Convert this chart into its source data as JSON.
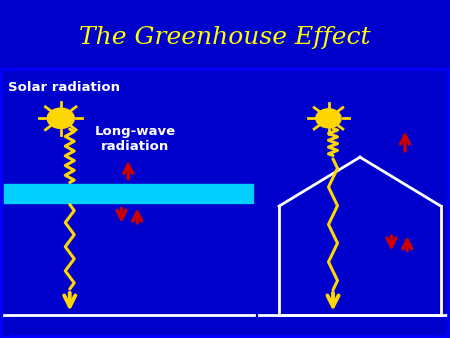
{
  "title": "The Greenhouse Effect",
  "title_color": "#FFFF00",
  "title_fontsize": 18,
  "title_bg_color": "#0000CC",
  "main_bg_color": "#00008B",
  "solar_label": "Solar radiation",
  "longwave_label": "Long-wave\nradiation",
  "label_color": "#FFFFFF",
  "sun_color": "#FFD700",
  "wavy_color": "#FFD700",
  "arrow_down_color": "#FFD700",
  "arrow_red_color": "#CC0000",
  "atmosphere_color": "#00CFFF",
  "ground_color": "#FFFFFF",
  "house_color": "#FFFFFF",
  "fig_width": 4.5,
  "fig_height": 3.38,
  "dpi": 100
}
